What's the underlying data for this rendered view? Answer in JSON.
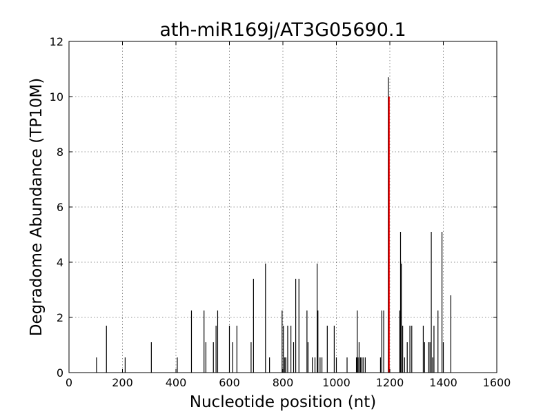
{
  "chart_data": {
    "type": "bar",
    "title": "ath-miR169j/AT3G05690.1",
    "xlabel": "Nucleotide position (nt)",
    "ylabel": "Degradome Abundance (TP10M)",
    "xlim": [
      0,
      1600
    ],
    "ylim": [
      0,
      12
    ],
    "xticks": [
      "0",
      "200",
      "400",
      "600",
      "800",
      "1000",
      "1200",
      "1400",
      "1600"
    ],
    "yticks": [
      "0",
      "2",
      "4",
      "6",
      "8",
      "10",
      "12"
    ],
    "grid": true,
    "colors": {
      "bars": "#000000",
      "highlight": "#ff0000"
    },
    "series": [
      {
        "x": [
          103,
          140,
          210,
          308,
          405,
          458,
          505,
          512,
          540,
          550,
          556,
          600,
          612,
          628,
          681,
          690,
          735,
          750,
          797,
          802,
          807,
          811,
          818,
          830,
          840,
          848,
          860,
          890,
          894,
          910,
          920,
          928,
          931,
          939,
          946,
          966,
          992,
          1000,
          1040,
          1075,
          1078,
          1081,
          1085,
          1090,
          1095,
          1100,
          1108,
          1165,
          1170,
          1177,
          1194,
          1237,
          1240,
          1243,
          1248,
          1255,
          1265,
          1275,
          1282,
          1325,
          1330,
          1345,
          1350,
          1355,
          1360,
          1365,
          1380,
          1395,
          1400,
          1428
        ],
        "values": [
          0.55,
          1.7,
          0.55,
          1.1,
          0.55,
          2.25,
          2.25,
          1.1,
          1.1,
          1.7,
          2.25,
          1.7,
          1.1,
          1.7,
          1.1,
          3.4,
          3.95,
          0.55,
          2.25,
          1.7,
          0.55,
          0.55,
          1.7,
          1.7,
          1.1,
          3.4,
          3.4,
          2.25,
          1.1,
          0.55,
          0.55,
          3.95,
          2.25,
          0.55,
          0.55,
          1.7,
          1.7,
          0.55,
          0.55,
          0.55,
          2.25,
          0.55,
          1.1,
          0.55,
          0.55,
          0.55,
          0.55,
          0.55,
          2.25,
          2.25,
          10.7,
          2.25,
          5.1,
          3.95,
          1.7,
          0.55,
          1.1,
          1.7,
          1.7,
          1.7,
          1.1,
          1.1,
          1.1,
          5.1,
          0.55,
          1.7,
          2.25,
          5.1,
          1.1,
          2.8
        ]
      },
      {
        "x": [
          1197
        ],
        "values": [
          10.0
        ]
      }
    ]
  }
}
